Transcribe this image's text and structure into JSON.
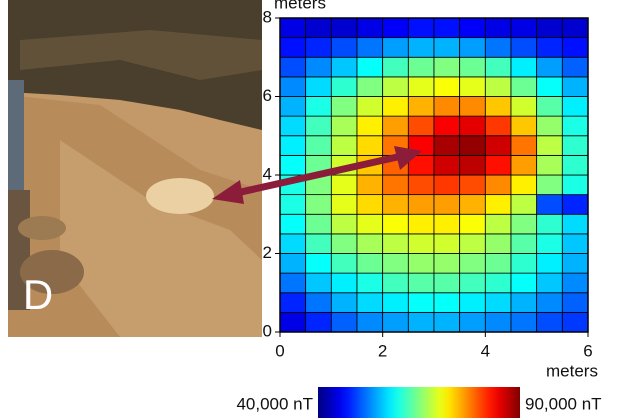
{
  "panel_label": "D",
  "chart_data": {
    "type": "heatmap",
    "xlabel": "meters",
    "ylabel": "meters",
    "x": [
      0.25,
      0.75,
      1.25,
      1.75,
      2.25,
      2.75,
      3.25,
      3.75,
      4.25,
      4.75,
      5.25,
      5.75
    ],
    "y": [
      0.25,
      0.75,
      1.25,
      1.75,
      2.25,
      2.75,
      3.25,
      3.75,
      4.25,
      4.75,
      5.25,
      5.75,
      6.25,
      6.75,
      7.25,
      7.75
    ],
    "z": [
      [
        45000,
        48000,
        51000,
        53000,
        54000,
        55000,
        55000,
        54000,
        53000,
        52000,
        50000,
        49000
      ],
      [
        48000,
        52000,
        55000,
        57000,
        58000,
        59000,
        59000,
        58000,
        57000,
        55000,
        53000,
        51000
      ],
      [
        52000,
        56000,
        58000,
        60000,
        62000,
        63000,
        63000,
        62000,
        61000,
        59000,
        56000,
        53000
      ],
      [
        55000,
        59000,
        62000,
        64000,
        65000,
        66000,
        66000,
        65000,
        64000,
        61000,
        58000,
        55000
      ],
      [
        57000,
        62000,
        65000,
        67000,
        68000,
        69000,
        69000,
        68000,
        66000,
        63000,
        60000,
        56000
      ],
      [
        59000,
        64000,
        68000,
        70000,
        71000,
        72000,
        72000,
        71000,
        68000,
        65000,
        61000,
        57000
      ],
      [
        60000,
        65000,
        70000,
        73000,
        75000,
        76000,
        76000,
        75000,
        72000,
        68000,
        50000,
        48000
      ],
      [
        60000,
        65000,
        70000,
        75000,
        78000,
        80000,
        81000,
        80000,
        77000,
        72000,
        65000,
        60000
      ],
      [
        59000,
        64000,
        69000,
        74000,
        79000,
        83000,
        86000,
        87000,
        83000,
        76000,
        67000,
        61000
      ],
      [
        58000,
        63000,
        68000,
        73000,
        78000,
        84000,
        88000,
        89000,
        86000,
        78000,
        68000,
        61000
      ],
      [
        57000,
        62000,
        67000,
        72000,
        76000,
        80000,
        84000,
        85000,
        81000,
        74000,
        66000,
        60000
      ],
      [
        55000,
        60000,
        65000,
        69000,
        72000,
        75000,
        77000,
        77000,
        74000,
        69000,
        63000,
        58000
      ],
      [
        53000,
        57000,
        61000,
        65000,
        68000,
        70000,
        71000,
        70000,
        68000,
        64000,
        59000,
        55000
      ],
      [
        50000,
        53000,
        56000,
        59000,
        62000,
        64000,
        65000,
        64000,
        62000,
        58000,
        54000,
        51000
      ],
      [
        47000,
        48000,
        50000,
        52000,
        54000,
        55000,
        55000,
        54000,
        52000,
        50000,
        48000,
        47000
      ],
      [
        45000,
        44000,
        44000,
        45000,
        46000,
        47000,
        47000,
        46000,
        45000,
        45000,
        44000,
        44000
      ]
    ],
    "xlim": [
      0,
      6
    ],
    "ylim": [
      0,
      8
    ],
    "xticks": [
      0,
      2,
      4,
      6
    ],
    "yticks": [
      0,
      2,
      4,
      6,
      8
    ],
    "clim": [
      40000,
      90000
    ],
    "cticks": [
      {
        "value": 40000,
        "label": "40,000 nT"
      },
      {
        "value": 90000,
        "label": "90,000 nT"
      }
    ],
    "colormap": "jet",
    "grid": true
  }
}
